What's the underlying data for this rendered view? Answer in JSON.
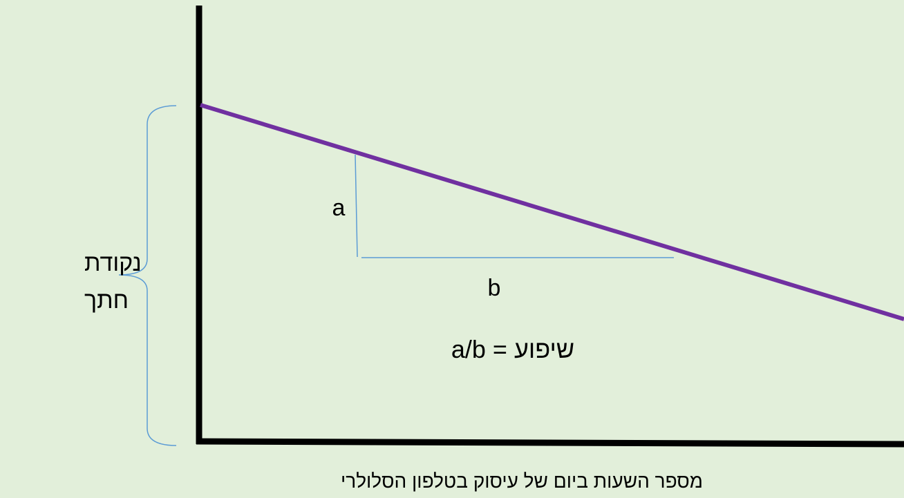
{
  "intercept_label": {
    "line1": "נקודת",
    "line2": "חתך"
  },
  "rise_label": "a",
  "run_label": "b",
  "slope_formula": "שיפוע = a/b",
  "x_axis_label": "מספר השעות ביום של עיסוק בטלפון הסלולרי"
}
